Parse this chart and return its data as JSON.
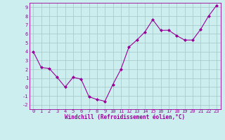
{
  "x": [
    0,
    1,
    2,
    3,
    4,
    5,
    6,
    7,
    8,
    9,
    10,
    11,
    12,
    13,
    14,
    15,
    16,
    17,
    18,
    19,
    20,
    21,
    22,
    23
  ],
  "y": [
    4.0,
    2.2,
    2.1,
    1.1,
    0.0,
    1.1,
    0.9,
    -1.1,
    -1.4,
    -1.6,
    0.3,
    2.0,
    4.5,
    5.3,
    6.2,
    7.6,
    6.4,
    6.4,
    5.8,
    5.3,
    5.3,
    6.5,
    8.0,
    9.2
  ],
  "line_color": "#990099",
  "marker": "D",
  "marker_size": 2,
  "bg_color": "#cceeee",
  "grid_color": "#aacccc",
  "xlabel": "Windchill (Refroidissement éolien,°C)",
  "xlabel_color": "#990099",
  "tick_color": "#990099",
  "ylim": [
    -2.5,
    9.5
  ],
  "xlim": [
    -0.5,
    23.5
  ],
  "yticks": [
    -2,
    -1,
    0,
    1,
    2,
    3,
    4,
    5,
    6,
    7,
    8,
    9
  ],
  "xticks": [
    0,
    1,
    2,
    3,
    4,
    5,
    6,
    7,
    8,
    9,
    10,
    11,
    12,
    13,
    14,
    15,
    16,
    17,
    18,
    19,
    20,
    21,
    22,
    23
  ],
  "tick_fontsize": 5,
  "xlabel_fontsize": 5.5,
  "linewidth": 0.8
}
